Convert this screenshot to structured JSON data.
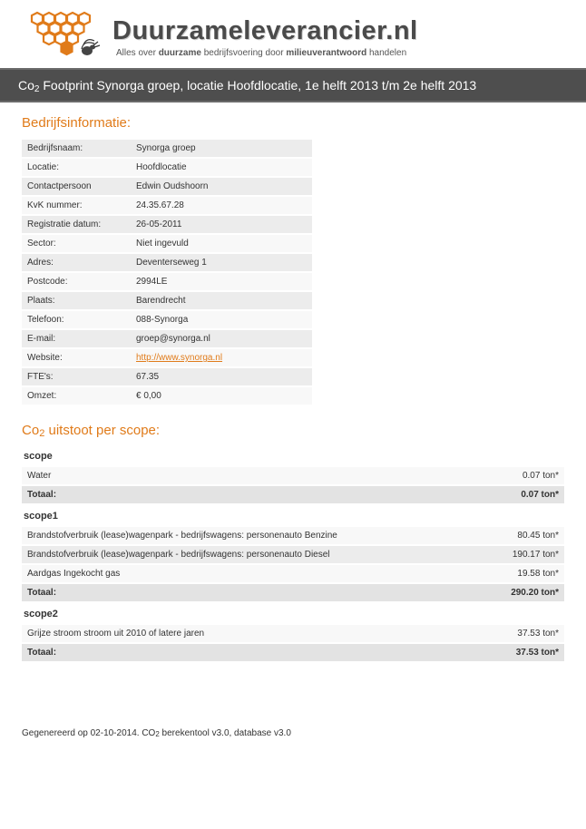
{
  "brand": {
    "title": "Duurzameleverancier.nl",
    "tag_pre": "Alles over",
    "tag_b1": "duurzame",
    "tag_mid": " bedrijfsvoering door",
    "tag_b2": "milieuverantwoord",
    "tag_post": " handelen"
  },
  "page_title_pre": "Co",
  "page_title_sub": "2",
  "page_title_rest": " Footprint Synorga groep, locatie Hoofdlocatie, 1e helft 2013 t/m 2e helft 2013",
  "section_info": "Bedrijfsinformatie:",
  "info_rows": [
    {
      "k": "Bedrijfsnaam:",
      "v": "Synorga groep"
    },
    {
      "k": "Locatie:",
      "v": "Hoofdlocatie"
    },
    {
      "k": "Contactpersoon",
      "v": "Edwin Oudshoorn"
    },
    {
      "k": "KvK nummer:",
      "v": "24.35.67.28"
    },
    {
      "k": "Registratie datum:",
      "v": "26-05-2011"
    },
    {
      "k": "Sector:",
      "v": "Niet ingevuld"
    },
    {
      "k": "Adres:",
      "v": "Deventerseweg 1"
    },
    {
      "k": "Postcode:",
      "v": "2994LE"
    },
    {
      "k": "Plaats:",
      "v": "Barendrecht"
    },
    {
      "k": "Telefoon:",
      "v": "088-Synorga"
    },
    {
      "k": "E-mail:",
      "v": "groep@synorga.nl"
    },
    {
      "k": "Website:",
      "v": "http://www.synorga.nl",
      "link": true
    },
    {
      "k": "FTE's:",
      "v": "67.35"
    },
    {
      "k": "Omzet:",
      "v": "€ 0,00"
    }
  ],
  "section_scope_pre": "Co",
  "section_scope_sub": "2",
  "section_scope_rest": " uitstoot per scope:",
  "scopes": [
    {
      "name": "scope",
      "rows": [
        {
          "label": "Water",
          "value": "0.07 ton*"
        }
      ],
      "total_label": "Totaal:",
      "total_value": "0.07 ton*"
    },
    {
      "name": "scope1",
      "rows": [
        {
          "label": "Brandstofverbruik (lease)wagenpark - bedrijfswagens: personenauto Benzine",
          "value": "80.45 ton*"
        },
        {
          "label": "Brandstofverbruik (lease)wagenpark - bedrijfswagens: personenauto Diesel",
          "value": "190.17 ton*"
        },
        {
          "label": "Aardgas Ingekocht gas",
          "value": "19.58 ton*"
        }
      ],
      "total_label": "Totaal:",
      "total_value": "290.20 ton*"
    },
    {
      "name": "scope2",
      "rows": [
        {
          "label": "Grijze stroom stroom uit 2010 of latere jaren",
          "value": "37.53 ton*"
        }
      ],
      "total_label": "Totaal:",
      "total_value": "37.53 ton*"
    }
  ],
  "footer_pre": "Gegenereerd op 02-10-2014. CO",
  "footer_sub": "2",
  "footer_rest": " berekentool v3.0, database v3.0",
  "colors": {
    "accent": "#e07b1a",
    "bar": "#4e4e4e",
    "row_light": "#f8f8f8",
    "row_dark": "#ececec",
    "total": "#e3e3e3"
  }
}
